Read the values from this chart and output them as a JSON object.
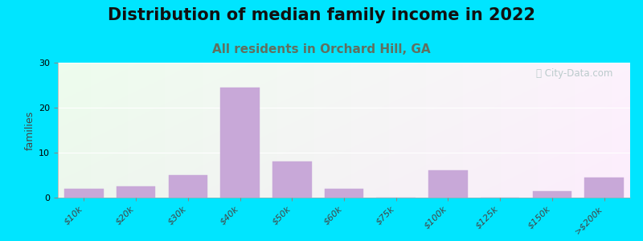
{
  "title": "Distribution of median family income in 2022",
  "subtitle": "All residents in Orchard Hill, GA",
  "xlabel": "",
  "ylabel": "families",
  "categories": [
    "$10k",
    "$20k",
    "$30k",
    "$40k",
    "$50k",
    "$60k",
    "$75k",
    "$100k",
    "$125k",
    "$150k",
    ">$200k"
  ],
  "values": [
    2,
    2.5,
    5,
    24.5,
    8,
    2,
    0,
    6,
    0,
    1.5,
    4.5
  ],
  "bar_color": "#c8a8d8",
  "bar_edgecolor": "#c8a8d8",
  "bg_outer": "#00e5ff",
  "ylim": [
    0,
    30
  ],
  "yticks": [
    0,
    10,
    20,
    30
  ],
  "title_fontsize": 15,
  "subtitle_fontsize": 11,
  "subtitle_color": "#607060",
  "ylabel_fontsize": 9,
  "tick_fontsize": 8,
  "watermark_text": "ⓘ City-Data.com",
  "title_color": "#111111"
}
